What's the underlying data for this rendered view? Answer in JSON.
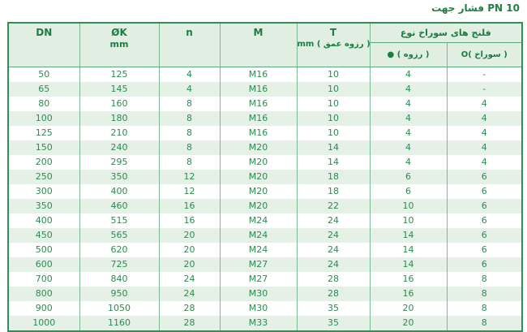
{
  "title": "جهت فشار PN 10",
  "table": {
    "columns": {
      "dn": {
        "label": "DN"
      },
      "ok": {
        "label": "ØK",
        "sub": "mm"
      },
      "n": {
        "label": "n"
      },
      "m": {
        "label": "M"
      },
      "t": {
        "label": "T",
        "sub": "mm ( عمق رزوه )"
      },
      "holes": {
        "label": "نوع سوراخ های فلنج",
        "threaded": "● ( رزوه )",
        "plain": "O( سوراخ )"
      }
    },
    "rows": [
      [
        "50",
        "125",
        "4",
        "M16",
        "10",
        "4",
        "-"
      ],
      [
        "65",
        "145",
        "4",
        "M16",
        "10",
        "4",
        "-"
      ],
      [
        "80",
        "160",
        "8",
        "M16",
        "10",
        "4",
        "4"
      ],
      [
        "100",
        "180",
        "8",
        "M16",
        "10",
        "4",
        "4"
      ],
      [
        "125",
        "210",
        "8",
        "M16",
        "10",
        "4",
        "4"
      ],
      [
        "150",
        "240",
        "8",
        "M20",
        "14",
        "4",
        "4"
      ],
      [
        "200",
        "295",
        "8",
        "M20",
        "14",
        "4",
        "4"
      ],
      [
        "250",
        "350",
        "12",
        "M20",
        "18",
        "6",
        "6"
      ],
      [
        "300",
        "400",
        "12",
        "M20",
        "18",
        "6",
        "6"
      ],
      [
        "350",
        "460",
        "16",
        "M20",
        "22",
        "10",
        "6"
      ],
      [
        "400",
        "515",
        "16",
        "M24",
        "24",
        "10",
        "6"
      ],
      [
        "450",
        "565",
        "20",
        "M24",
        "24",
        "14",
        "6"
      ],
      [
        "500",
        "620",
        "20",
        "M24",
        "24",
        "14",
        "6"
      ],
      [
        "600",
        "725",
        "20",
        "M27",
        "24",
        "14",
        "6"
      ],
      [
        "700",
        "840",
        "24",
        "M27",
        "28",
        "16",
        "8"
      ],
      [
        "800",
        "950",
        "24",
        "M30",
        "28",
        "16",
        "8"
      ],
      [
        "900",
        "1050",
        "28",
        "M30",
        "35",
        "20",
        "8"
      ],
      [
        "1000",
        "1160",
        "28",
        "M33",
        "35",
        "20",
        "8"
      ]
    ]
  },
  "colors": {
    "title_text": "#1f7f45",
    "header_bg": "#e1efe3",
    "alt_row_bg": "#e5f1e7",
    "data_text": "#2e8a50",
    "header_text": "#1c7c42",
    "outer_border": "#2f8f55",
    "inner_border": "#7cb795"
  },
  "chart_data": {
    "type": "table",
    "title": "جهت فشار PN 10",
    "columns": [
      "DN",
      "ØK mm",
      "n",
      "M",
      "T mm (عمق رزوه)",
      "● (رزوه)",
      "O(سوراخ)"
    ],
    "group_header": "نوع سوراخ های فلنج"
  }
}
